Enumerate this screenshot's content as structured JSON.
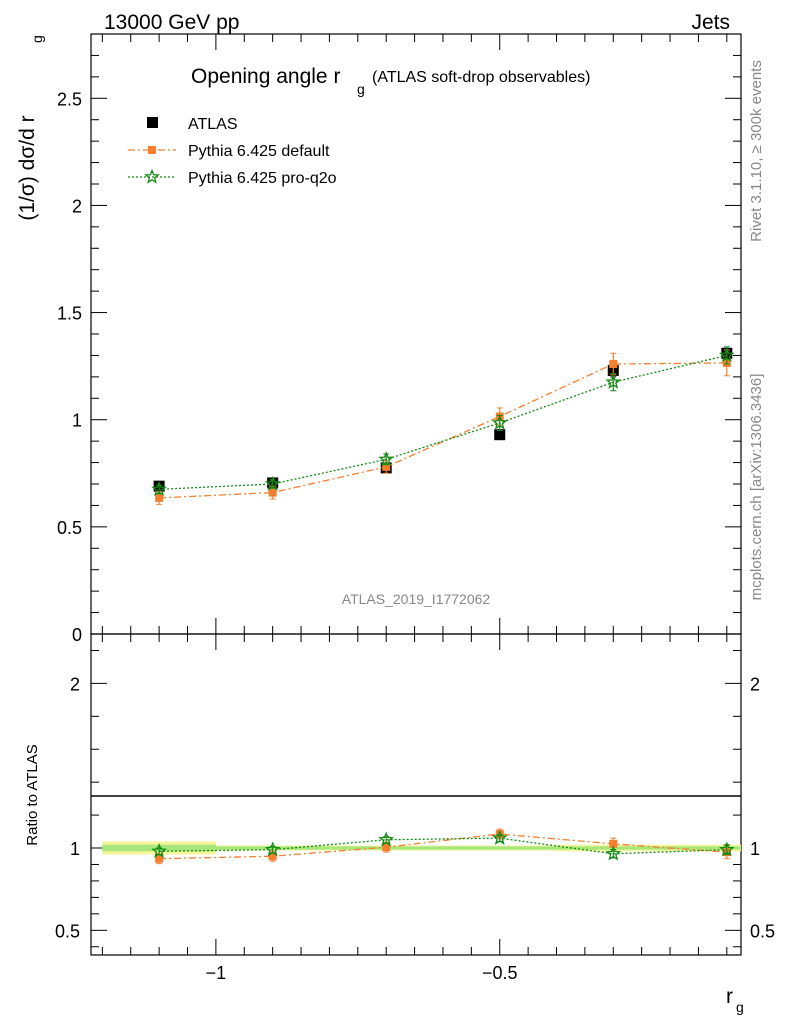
{
  "header": {
    "left": "13000 GeV pp",
    "right": "Jets"
  },
  "side_labels": {
    "rivet": "Rivet 3.1.10, ≥ 300k events",
    "mcplots": "mcplots.cern.ch [arXiv:1306.3436]"
  },
  "plot_title": {
    "main": "Opening angle r",
    "sub": "g",
    "suffix": "(ATLAS soft-drop observables)"
  },
  "watermark": "ATLAS_2019_I1772062",
  "ylabel_top": {
    "main": "(1/σ) dσ/d r",
    "sub": "g"
  },
  "ylabel_bottom": "Ratio to ATLAS",
  "xlabel": {
    "main": "r",
    "sub": "g"
  },
  "colors": {
    "atlas": "#000000",
    "default": "#f47f2f",
    "proq2o": "#138a13",
    "band_outer": "#f5f59a",
    "band_inner": "#a6e67a"
  },
  "chart_data": [
    {
      "type": "scatter",
      "panel": "main",
      "x": [
        -1.1,
        -0.9,
        -0.7,
        -0.5,
        -0.3,
        -0.1
      ],
      "xlim": [
        -1.22,
        -0.075
      ],
      "ylim": [
        0,
        2.8
      ],
      "yticks": [
        {
          "v": 0.5,
          "t": "0.5"
        },
        {
          "v": 1,
          "t": "1"
        },
        {
          "v": 1.5,
          "t": "1.5"
        },
        {
          "v": 2,
          "t": "2"
        },
        {
          "v": 2.5,
          "t": "2.5"
        }
      ],
      "series": [
        {
          "name": "ATLAS",
          "marker": "square",
          "values": [
            0.69,
            0.705,
            0.775,
            0.93,
            1.23,
            1.31
          ],
          "err": [
            0.015,
            0.015,
            0.015,
            0.02,
            0.03,
            0.02
          ]
        },
        {
          "name": "Pythia 6.425 default",
          "marker": "square-small",
          "line": "dashdot",
          "values": [
            0.635,
            0.66,
            0.78,
            1.015,
            1.26,
            1.265
          ],
          "err": [
            0.03,
            0.03,
            0.03,
            0.04,
            0.05,
            0.06
          ]
        },
        {
          "name": "Pythia 6.425 pro-q2o",
          "marker": "star",
          "line": "dotted",
          "values": [
            0.675,
            0.7,
            0.815,
            0.985,
            1.175,
            1.3
          ],
          "err": [
            0.02,
            0.02,
            0.025,
            0.035,
            0.04,
            0.04
          ]
        }
      ]
    },
    {
      "type": "line",
      "panel": "ratio",
      "x": [
        -1.1,
        -0.9,
        -0.7,
        -0.5,
        -0.3,
        -0.1
      ],
      "xlim": [
        -1.22,
        -0.075
      ],
      "ylim": [
        0.35,
        2.3
      ],
      "xticks": [
        {
          "v": -1,
          "t": "−1"
        },
        {
          "v": -0.5,
          "t": "−0.5"
        }
      ],
      "yticks": [
        {
          "v": 0.5,
          "t": "0.5"
        },
        {
          "v": 1,
          "t": "1"
        },
        {
          "v": 2,
          "t": "2"
        }
      ],
      "bands": [
        {
          "x": [
            -1.2,
            -1.0
          ],
          "outer": [
            0.96,
            1.04
          ],
          "inner": [
            0.98,
            1.02
          ]
        },
        {
          "x": [
            -1.0,
            -0.8
          ],
          "outer": [
            0.985,
            1.015
          ],
          "inner": [
            0.99,
            1.01
          ]
        },
        {
          "x": [
            -0.8,
            -0.6
          ],
          "outer": [
            0.985,
            1.015
          ],
          "inner": [
            0.99,
            1.01
          ]
        },
        {
          "x": [
            -0.6,
            -0.4
          ],
          "outer": [
            0.985,
            1.015
          ],
          "inner": [
            0.99,
            1.01
          ]
        },
        {
          "x": [
            -0.4,
            -0.2
          ],
          "outer": [
            0.98,
            1.02
          ],
          "inner": [
            0.99,
            1.01
          ]
        },
        {
          "x": [
            -0.2,
            -0.075
          ],
          "outer": [
            0.98,
            1.02
          ],
          "inner": [
            0.99,
            1.01
          ]
        }
      ],
      "series": [
        {
          "name": "Pythia 6.425 default",
          "values": [
            0.935,
            0.95,
            1.005,
            1.085,
            1.025,
            0.975
          ],
          "err": [
            0.03,
            0.03,
            0.03,
            0.03,
            0.035,
            0.04
          ]
        },
        {
          "name": "Pythia 6.425 pro-q2o",
          "values": [
            0.98,
            0.99,
            1.05,
            1.06,
            0.965,
            0.99
          ],
          "err": [
            0.02,
            0.02,
            0.02,
            0.02,
            0.025,
            0.03
          ]
        }
      ]
    }
  ]
}
